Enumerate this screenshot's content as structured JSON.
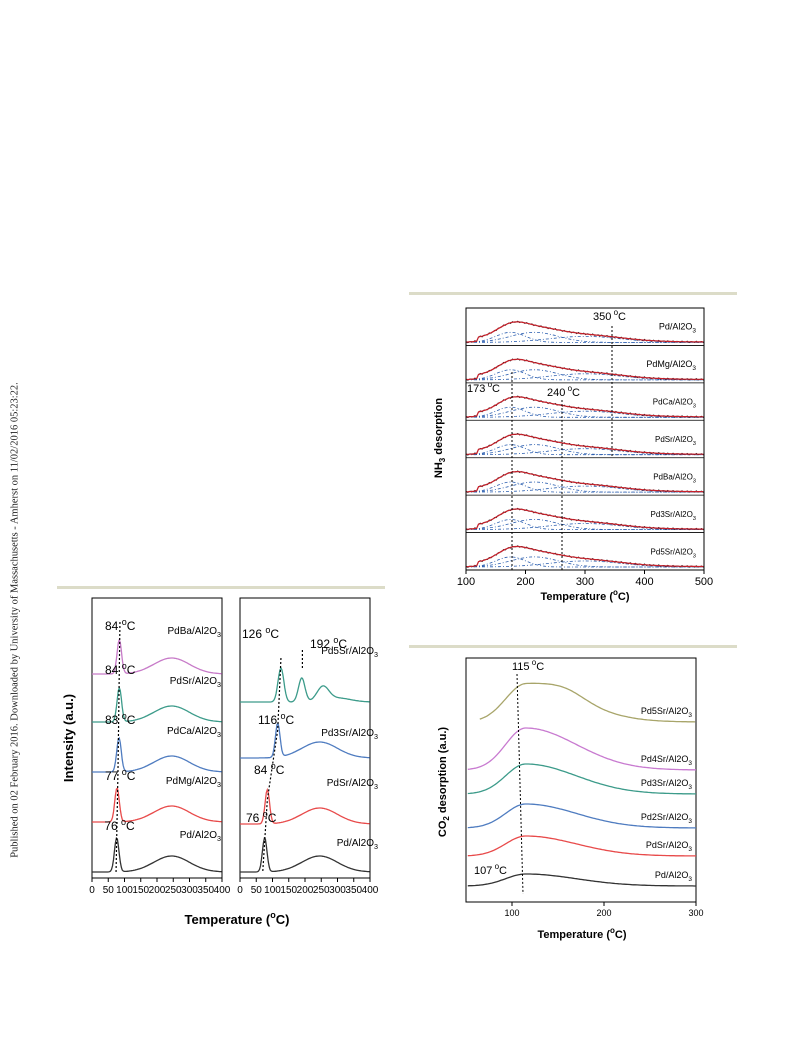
{
  "sidebar": {
    "text": "Published on 02 February 2016. Downloaded by University of Massachusetts - Amherst on 11/02/2016 05:23:22."
  },
  "nh3_figure": {
    "ylabel": "desorption",
    "ylabel_prefix": "NH",
    "ylabel_sub": "3",
    "xlabel": "Temperature (",
    "xlabel_unit": "C)",
    "xlabel_sup": "o",
    "xticks": [
      "100",
      "200",
      "300",
      "400",
      "500"
    ],
    "panels": [
      "Pd/Al2O3",
      "PdMg/Al2O3",
      "PdCa/Al2O3",
      "PdSr/Al2O3",
      "PdBa/Al2O3",
      "Pd3Sr/Al2O3",
      "Pd5Sr/Al2O3"
    ],
    "annotations": [
      {
        "value": "350",
        "unit": "C"
      },
      {
        "value": "173",
        "unit": "C"
      },
      {
        "value": "240",
        "unit": "C"
      }
    ],
    "colors": {
      "fit": "#c8202a",
      "component": "#2c5fb0",
      "data": "#111111"
    }
  },
  "h2_left": {
    "ylabel": "Intensity (a.u.)",
    "xlabel": "Temperature (",
    "xlabel_unit": "C)",
    "xlabel_sup": "o",
    "xticks": [
      "0",
      "50",
      "100",
      "150",
      "200",
      "250",
      "300",
      "350",
      "400"
    ],
    "curves": [
      {
        "label": "PdBa/Al2O3",
        "peak": "84",
        "color": "#c77ac8"
      },
      {
        "label": "PdSr/Al2O3",
        "peak": "84",
        "color": "#3c9b8a"
      },
      {
        "label": "PdCa/Al2O3",
        "peak": "83",
        "color": "#4f7cc0"
      },
      {
        "label": "PdMg/Al2O3",
        "peak": "77",
        "color": "#e84a4a"
      },
      {
        "label": "Pd/Al2O3",
        "peak": "76",
        "color": "#333333"
      }
    ]
  },
  "h2_right": {
    "xticks": [
      "0",
      "50",
      "100",
      "150",
      "200",
      "250",
      "300",
      "350",
      "400"
    ],
    "curves": [
      {
        "label": "Pd5Sr/Al2O3",
        "peak": "126",
        "peak2": "192",
        "color": "#3c9b8a"
      },
      {
        "label": "Pd3Sr/Al2O3",
        "peak": "116",
        "color": "#4f7cc0"
      },
      {
        "label": "PdSr/Al2O3",
        "peak": "84",
        "color": "#e84a4a"
      },
      {
        "label": "Pd/Al2O3",
        "peak": "76",
        "color": "#333333"
      }
    ]
  },
  "co2_figure": {
    "ylabel": "desorption (a.u.)",
    "ylabel_prefix": "CO",
    "ylabel_sub": "2",
    "xlabel": "Temperature (",
    "xlabel_unit": "C)",
    "xlabel_sup": "o",
    "xticks": [
      "100",
      "200",
      "300"
    ],
    "top_annotation": "115",
    "bottom_annotation": "107",
    "curves": [
      {
        "label": "Pd5Sr/Al2O3",
        "color": "#a8a56a"
      },
      {
        "label": "Pd4Sr/Al2O3",
        "color": "#c87ad0"
      },
      {
        "label": "Pd3Sr/Al2O3",
        "color": "#3c9b8a"
      },
      {
        "label": "Pd2Sr/Al2O3",
        "color": "#4f7cc0"
      },
      {
        "label": "PdSr/Al2O3",
        "color": "#e84a4a"
      },
      {
        "label": "Pd/Al2O3",
        "color": "#333333"
      }
    ]
  }
}
